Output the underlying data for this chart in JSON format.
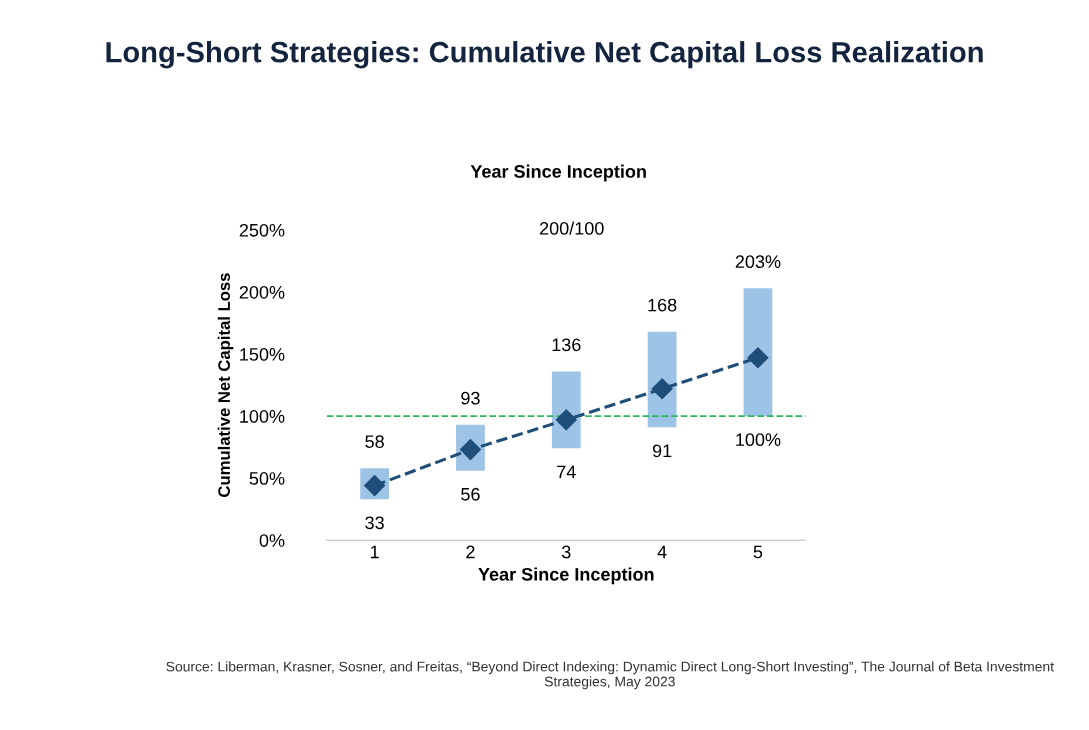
{
  "chart_data": {
    "type": "bar",
    "title": "Long-Short Strategies: Cumulative Net Capital Loss Realization",
    "subtitle": "Year Since Inception",
    "xlabel": "Year Since Inception",
    "ylabel": "Cumulative Net Capital Loss",
    "categories": [
      "1",
      "2",
      "3",
      "4",
      "5"
    ],
    "series": [
      {
        "color": "#9dc3e6",
        "base": [
          33,
          56,
          74,
          91,
          100
        ],
        "values": [
          25,
          37,
          62,
          77,
          103
        ]
      },
      {
        "type": "line",
        "color": "#1f4e79",
        "marker": "diamond",
        "line_style": "dashed",
        "values": [
          44,
          73,
          97,
          122,
          147
        ]
      }
    ],
    "ylim": [
      0,
      250
    ],
    "yticks": [
      {
        "value": 0,
        "label": "0%"
      },
      {
        "value": 50,
        "label": "50%"
      },
      {
        "value": 100,
        "label": "100%"
      },
      {
        "value": 150,
        "label": "150%"
      },
      {
        "value": 200,
        "label": "200%"
      },
      {
        "value": 250,
        "label": "250%"
      }
    ],
    "ref_lines": [
      {
        "axis": "y",
        "value": 100,
        "label": null,
        "color": "#2eb85c",
        "line_style": "dashed"
      }
    ],
    "annotations": [
      "200/100",
      {
        "text": "58",
        "x": "1",
        "y": 58
      },
      {
        "text": "33",
        "x": "1",
        "y": 33
      },
      {
        "text": "93",
        "x": "2",
        "y": 93
      },
      {
        "text": "56",
        "x": "2",
        "y": 56
      },
      {
        "text": "136",
        "x": "3",
        "y": 136
      },
      {
        "text": "74",
        "x": "3",
        "y": 74
      },
      {
        "text": "168",
        "x": "4",
        "y": 168
      },
      {
        "text": "91",
        "x": "4",
        "y": 91
      },
      {
        "text": "203%",
        "x": "5",
        "y": 203
      },
      {
        "text": "100%",
        "x": "5",
        "y": 100
      },
      "Source: Liberman, Krasner, Sosner, and Freitas, “Beyond Direct Indexing: Dynamic Direct Long-Short Investing”, The Journal of Beta Investment Strategies, May 2023"
    ],
    "grid": false
  }
}
